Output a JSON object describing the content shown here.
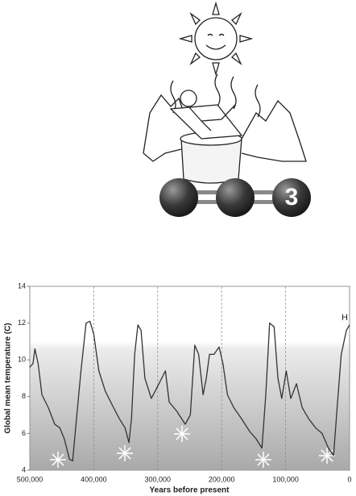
{
  "illustration": {
    "molecule_label": "3"
  },
  "chart_data": {
    "type": "line",
    "xlabel": "Years before present",
    "ylabel": "Global mean temperature  (C)",
    "annotation": "H",
    "xlim": [
      500000,
      0
    ],
    "ylim": [
      4,
      14
    ],
    "xticks": [
      {
        "value": 500000,
        "label": "500,000"
      },
      {
        "value": 400000,
        "label": "400,000"
      },
      {
        "value": 300000,
        "label": "300,000"
      },
      {
        "value": 200000,
        "label": "200,000"
      },
      {
        "value": 100000,
        "label": "100,000"
      },
      0
    ],
    "yticks": [
      4,
      6,
      8,
      10,
      12,
      14
    ],
    "grid": true,
    "series": [
      {
        "color": "#333333",
        "x": [
          500000,
          495000,
          492000,
          487000,
          481000,
          471000,
          461000,
          453000,
          446000,
          438000,
          433000,
          427000,
          420000,
          412000,
          406000,
          400000,
          392000,
          382000,
          369000,
          360000,
          351000,
          345000,
          341000,
          336000,
          331000,
          326000,
          320000,
          310000,
          301000,
          288000,
          282000,
          270000,
          257000,
          249000,
          242000,
          236000,
          229000,
          224000,
          219000,
          212000,
          204000,
          198000,
          191000,
          181000,
          169000,
          156000,
          146000,
          137000,
          131000,
          125000,
          118000,
          112000,
          106000,
          99000,
          92000,
          83000,
          74000,
          64000,
          53000,
          43000,
          33000,
          25000,
          19000,
          13000,
          5000,
          0
        ],
        "values": [
          9.6,
          9.8,
          10.6,
          9.8,
          8.1,
          7.4,
          6.5,
          6.3,
          5.7,
          4.6,
          4.5,
          6.8,
          9.4,
          12.0,
          12.1,
          11.4,
          9.4,
          8.3,
          7.4,
          6.8,
          6.3,
          5.5,
          6.8,
          10.3,
          11.9,
          11.6,
          9.0,
          7.9,
          8.5,
          9.4,
          7.7,
          7.2,
          6.5,
          7.0,
          10.8,
          10.3,
          8.1,
          9.0,
          10.3,
          10.3,
          10.7,
          9.8,
          8.1,
          7.4,
          6.8,
          6.1,
          5.7,
          5.2,
          8.1,
          12.0,
          11.8,
          9.0,
          7.9,
          9.4,
          7.9,
          8.7,
          7.4,
          6.8,
          6.3,
          6.0,
          5.2,
          4.8,
          7.6,
          10.3,
          11.6,
          11.9
        ]
      }
    ]
  }
}
